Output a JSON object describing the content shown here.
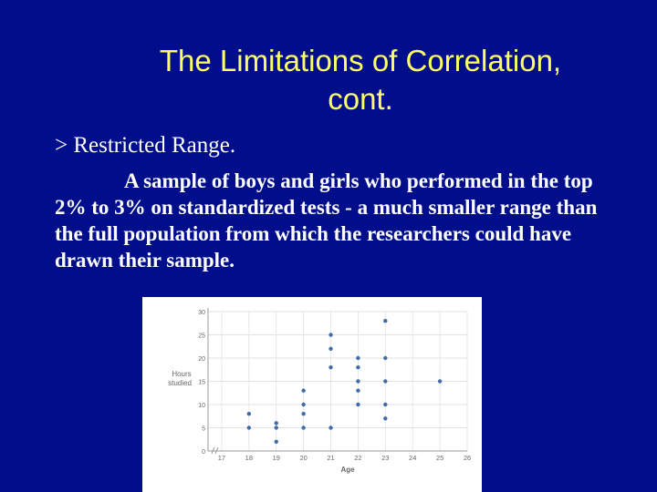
{
  "slide": {
    "title_line1": "The Limitations of Correlation,",
    "title_line2": "cont.",
    "bullet": "> Restricted Range.",
    "body": "A sample of boys and girls who performed in the top 2% to 3% on standardized tests - a much smaller range than the full population from which the researchers could have drawn their sample."
  },
  "colors": {
    "background": "#000E8C",
    "title": "#FFFF66",
    "text": "#FFFFFF",
    "point": "#3D6CA8"
  },
  "chart_data": {
    "type": "scatter",
    "xlabel": "Age",
    "ylabel_line1": "Hours",
    "ylabel_line2": "studied",
    "x_ticks": [
      17,
      18,
      19,
      20,
      21,
      22,
      23,
      24,
      25,
      26
    ],
    "y_ticks": [
      0,
      5,
      10,
      15,
      20,
      25,
      30
    ],
    "xlim": [
      16.5,
      26
    ],
    "ylim": [
      0,
      30
    ],
    "grid": true,
    "axis_break": true,
    "points": [
      {
        "x": 18,
        "y": 8
      },
      {
        "x": 18,
        "y": 5
      },
      {
        "x": 19,
        "y": 6
      },
      {
        "x": 19,
        "y": 5
      },
      {
        "x": 19,
        "y": 2
      },
      {
        "x": 20,
        "y": 13
      },
      {
        "x": 20,
        "y": 10
      },
      {
        "x": 20,
        "y": 8
      },
      {
        "x": 20,
        "y": 5
      },
      {
        "x": 21,
        "y": 25
      },
      {
        "x": 21,
        "y": 22
      },
      {
        "x": 21,
        "y": 18
      },
      {
        "x": 21,
        "y": 5
      },
      {
        "x": 22,
        "y": 20
      },
      {
        "x": 22,
        "y": 18
      },
      {
        "x": 22,
        "y": 15
      },
      {
        "x": 22,
        "y": 13
      },
      {
        "x": 22,
        "y": 10
      },
      {
        "x": 23,
        "y": 28
      },
      {
        "x": 23,
        "y": 20
      },
      {
        "x": 23,
        "y": 15
      },
      {
        "x": 23,
        "y": 10
      },
      {
        "x": 23,
        "y": 7
      },
      {
        "x": 25,
        "y": 15
      }
    ]
  }
}
